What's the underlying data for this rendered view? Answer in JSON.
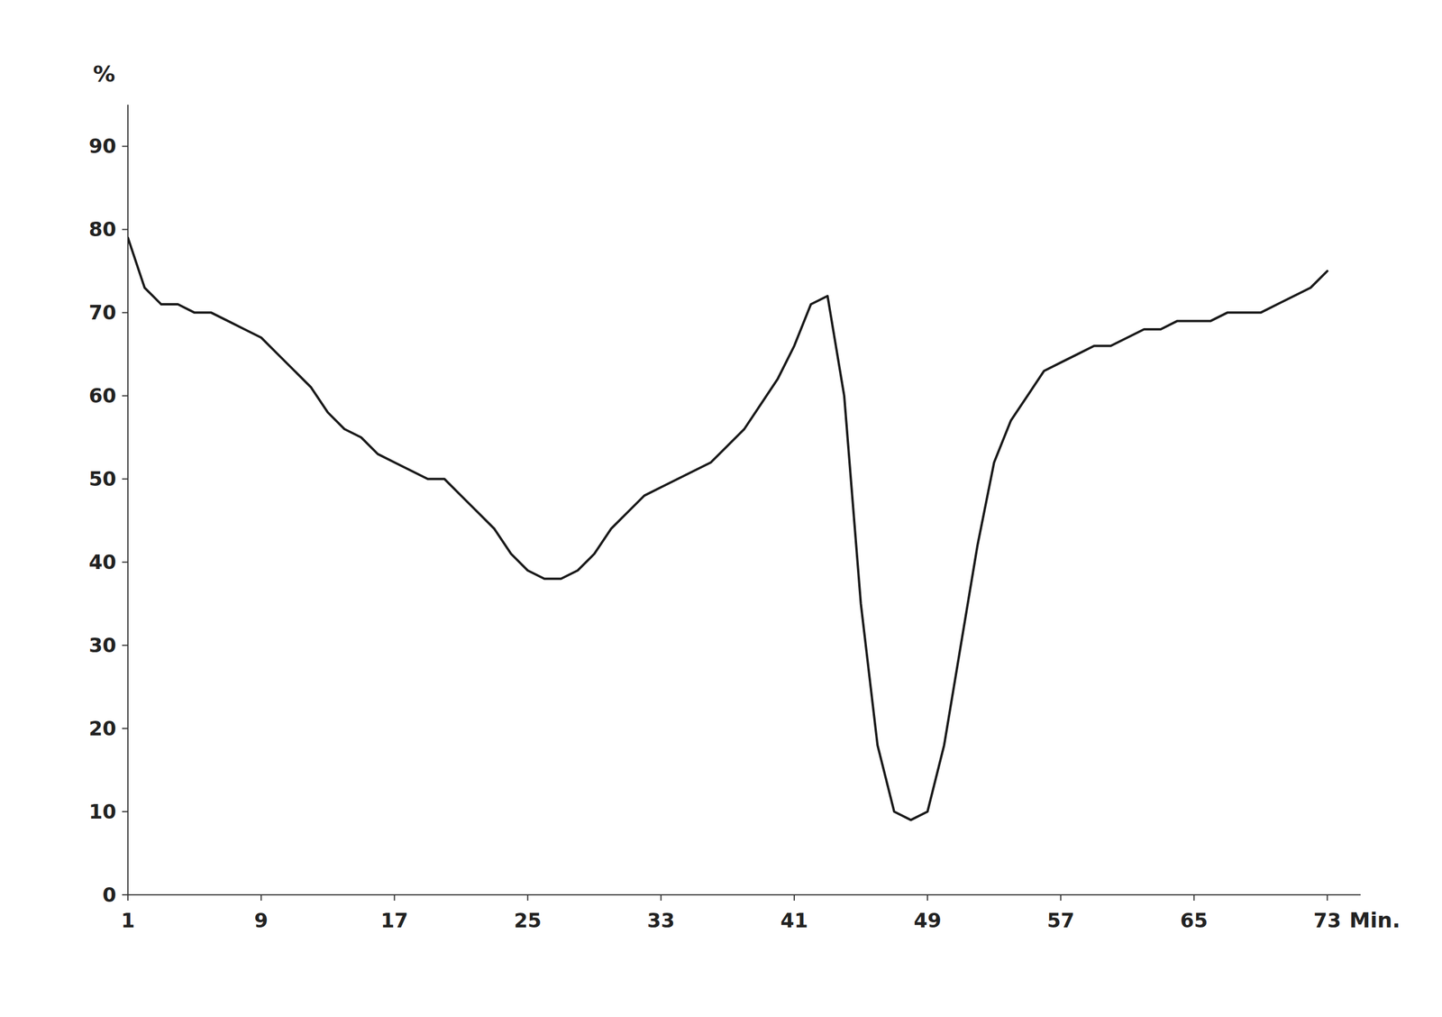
{
  "chart_data": {
    "type": "line",
    "x": [
      1,
      2,
      3,
      4,
      5,
      6,
      7,
      8,
      9,
      10,
      11,
      12,
      13,
      14,
      15,
      16,
      17,
      18,
      19,
      20,
      21,
      22,
      23,
      24,
      25,
      26,
      27,
      28,
      29,
      30,
      31,
      32,
      33,
      34,
      35,
      36,
      37,
      38,
      39,
      40,
      41,
      42,
      43,
      44,
      45,
      46,
      47,
      48,
      49,
      50,
      51,
      52,
      53,
      54,
      55,
      56,
      57,
      58,
      59,
      60,
      61,
      62,
      63,
      64,
      65,
      66,
      67,
      68,
      69,
      70,
      71,
      72,
      73
    ],
    "values": [
      79,
      73,
      71,
      71,
      70,
      70,
      69,
      68,
      67,
      65,
      63,
      61,
      58,
      56,
      55,
      53,
      52,
      51,
      50,
      50,
      48,
      46,
      44,
      41,
      39,
      38,
      38,
      39,
      41,
      44,
      46,
      48,
      49,
      50,
      51,
      52,
      54,
      56,
      59,
      62,
      66,
      71,
      72,
      60,
      35,
      18,
      10,
      9,
      10,
      18,
      30,
      42,
      52,
      57,
      60,
      63,
      64,
      65,
      66,
      66,
      67,
      68,
      68,
      69,
      69,
      69,
      70,
      70,
      70,
      71,
      72,
      73,
      75
    ],
    "color": "#1a1a1a",
    "xlim": [
      1,
      75
    ],
    "ylim": [
      0,
      95
    ],
    "xticks": [
      1,
      9,
      17,
      25,
      33,
      41,
      49,
      57,
      65,
      73
    ],
    "yticks": [
      0,
      10,
      20,
      30,
      40,
      50,
      60,
      70,
      80,
      90
    ],
    "xlabel": "Min.",
    "ylabel": "%",
    "grid": false
  }
}
